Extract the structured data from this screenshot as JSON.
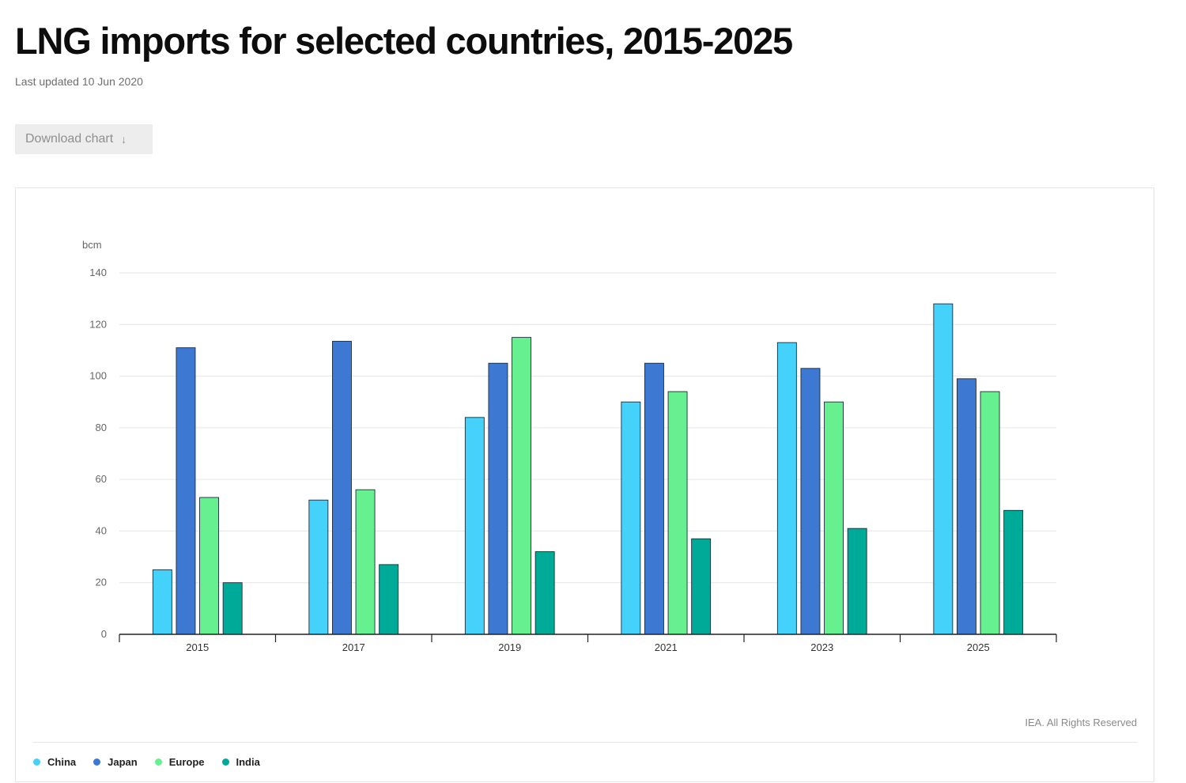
{
  "header": {
    "title": "LNG imports for selected countries, 2015-2025",
    "last_updated": "Last updated 10 Jun 2020",
    "download_label": "Download chart",
    "download_icon": "arrow-down-icon"
  },
  "footer": {
    "copyright": "IEA. All Rights Reserved"
  },
  "chart_data": {
    "type": "bar",
    "title": "LNG imports for selected countries, 2015-2025",
    "ylabel": "bcm",
    "xlabel": "",
    "ylim": [
      0,
      140
    ],
    "yticks": [
      0,
      20,
      40,
      60,
      80,
      100,
      120,
      140
    ],
    "grid": true,
    "legend_position": "bottom-left",
    "categories": [
      "2015",
      "2017",
      "2019",
      "2021",
      "2023",
      "2025"
    ],
    "series": [
      {
        "name": "China",
        "color": "#45d2fa",
        "values": [
          25,
          52,
          84,
          90,
          113,
          128
        ]
      },
      {
        "name": "Japan",
        "color": "#3d78d3",
        "values": [
          111,
          113.5,
          105,
          105,
          103,
          99
        ]
      },
      {
        "name": "Europe",
        "color": "#66f08f",
        "values": [
          53,
          56,
          115,
          94,
          90,
          94
        ]
      },
      {
        "name": "India",
        "color": "#00aa99",
        "values": [
          20,
          27,
          32,
          37,
          41,
          48
        ]
      }
    ]
  }
}
